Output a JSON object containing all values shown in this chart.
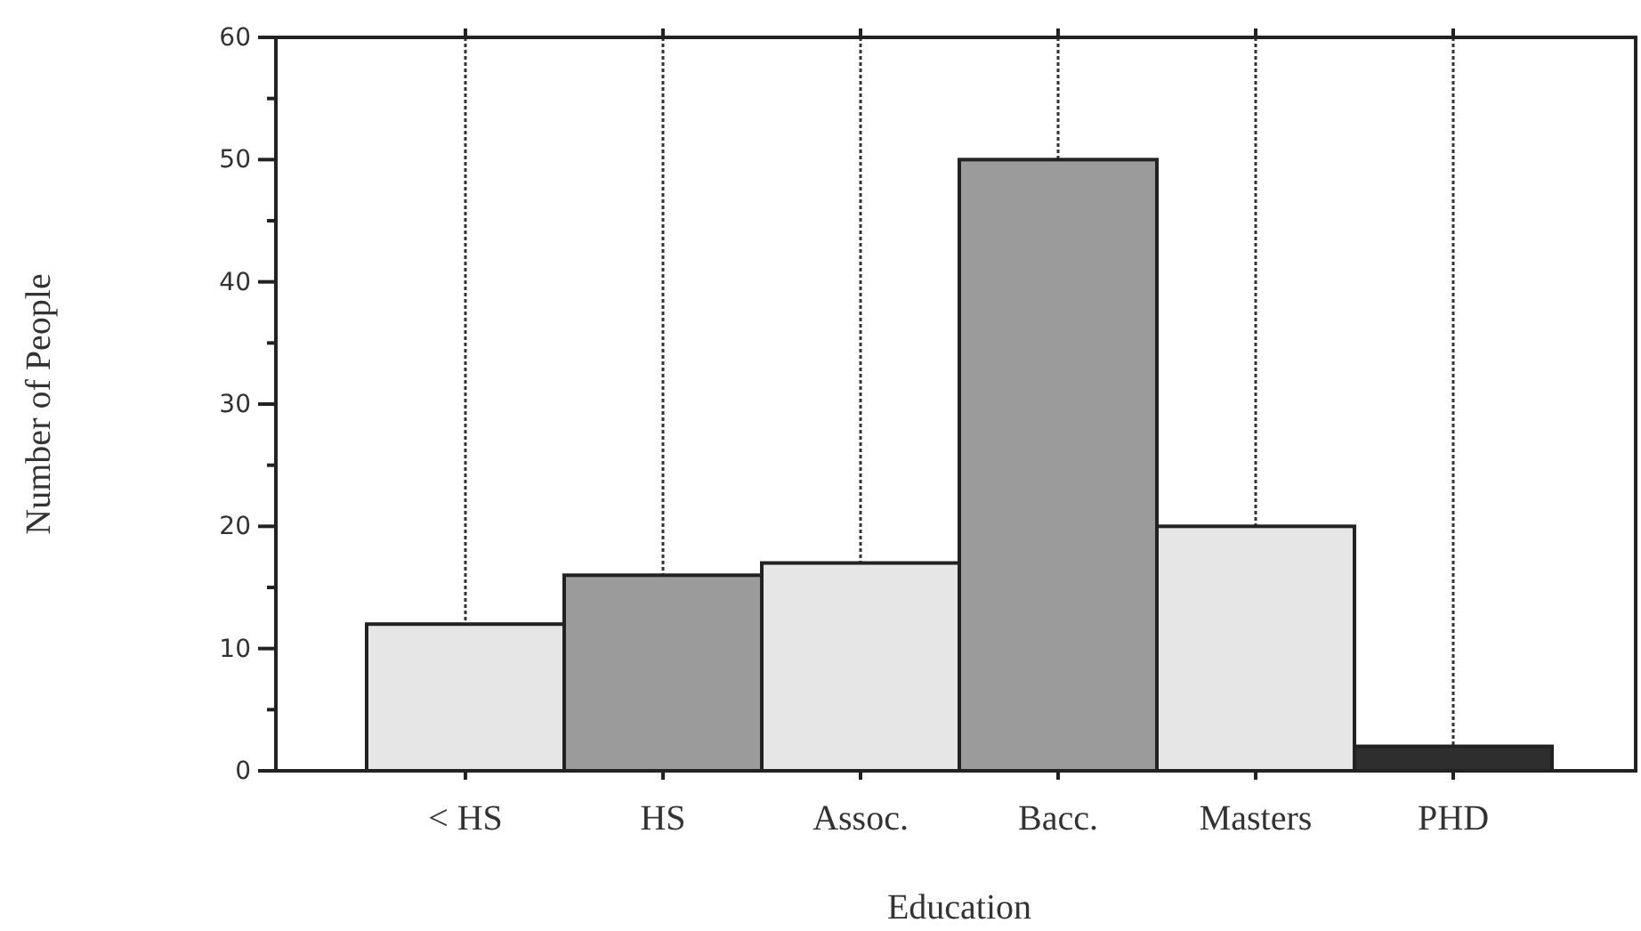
{
  "chart_data": {
    "type": "bar",
    "xlabel": "Education",
    "ylabel": "Number of People",
    "categories": [
      "< HS",
      "HS",
      "Assoc.",
      "Bacc.",
      "Masters",
      "PHD"
    ],
    "values": [
      12,
      16,
      17,
      50,
      20,
      2
    ],
    "colors": [
      "#e6e6e6",
      "#9b9b9b",
      "#e6e6e6",
      "#9b9b9b",
      "#e6e6e6",
      "#2e2e2e"
    ],
    "ylim": [
      0,
      60
    ],
    "yticks": [
      0,
      {
        "value": 5,
        "label": null
      },
      10,
      {
        "value": 15,
        "label": null
      },
      20,
      {
        "value": 25,
        "label": null
      },
      30,
      {
        "value": 35,
        "label": null
      },
      40,
      {
        "value": 45,
        "label": null
      },
      50,
      {
        "value": 55,
        "label": null
      },
      60
    ],
    "grid": "x",
    "line_style": "dotted"
  }
}
